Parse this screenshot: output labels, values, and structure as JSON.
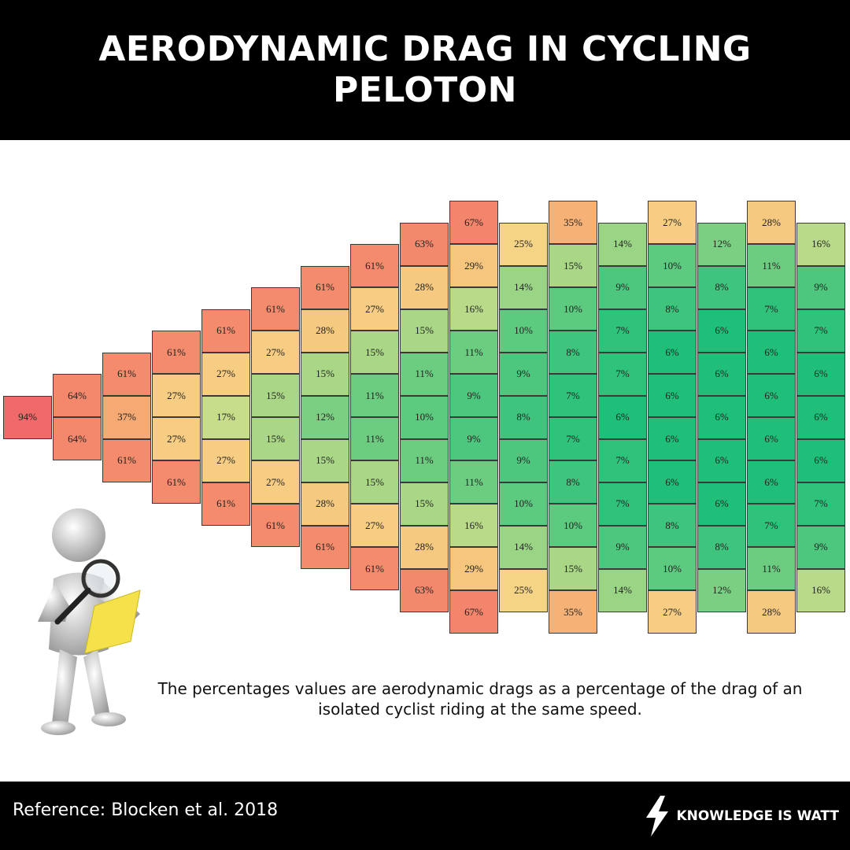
{
  "title": "AERODYNAMIC DRAG IN CYCLING PELOTON",
  "note": "The percentages values are aerodynamic drags  as a percentage of the drag of an isolated cyclist riding at the same speed.",
  "footer": {
    "reference": "Reference: Blocken et al. 2018",
    "brand": "KNOWLEDGE IS WATT"
  },
  "chart_data": {
    "type": "heatmap",
    "title": "AERODYNAMIC DRAG IN CYCLING PELOTON",
    "unit": "%",
    "description": "Columns of riders from front (left) to back (right); values listed top to bottom",
    "columns": [
      [
        "94%"
      ],
      [
        "64%",
        "64%"
      ],
      [
        "61%",
        "37%",
        "61%"
      ],
      [
        "61%",
        "27%",
        "27%",
        "61%"
      ],
      [
        "61%",
        "27%",
        "17%",
        "27%",
        "61%"
      ],
      [
        "61%",
        "27%",
        "15%",
        "15%",
        "27%",
        "61%"
      ],
      [
        "61%",
        "28%",
        "15%",
        "12%",
        "15%",
        "28%",
        "61%"
      ],
      [
        "61%",
        "27%",
        "15%",
        "11%",
        "11%",
        "15%",
        "27%",
        "61%"
      ],
      [
        "63%",
        "28%",
        "15%",
        "11%",
        "10%",
        "11%",
        "15%",
        "28%",
        "63%"
      ],
      [
        "67%",
        "29%",
        "16%",
        "11%",
        "9%",
        "9%",
        "11%",
        "16%",
        "29%",
        "67%"
      ],
      [
        "25%",
        "14%",
        "10%",
        "9%",
        "8%",
        "9%",
        "10%",
        "14%",
        "25%"
      ],
      [
        "35%",
        "15%",
        "10%",
        "8%",
        "7%",
        "7%",
        "8%",
        "10%",
        "15%",
        "35%"
      ],
      [
        "14%",
        "9%",
        "7%",
        "7%",
        "6%",
        "7%",
        "7%",
        "9%",
        "14%"
      ],
      [
        "27%",
        "10%",
        "8%",
        "6%",
        "6%",
        "6%",
        "6%",
        "8%",
        "10%",
        "27%"
      ],
      [
        "12%",
        "8%",
        "6%",
        "6%",
        "6%",
        "6%",
        "6%",
        "8%",
        "12%"
      ],
      [
        "28%",
        "11%",
        "7%",
        "6%",
        "6%",
        "6%",
        "6%",
        "7%",
        "11%",
        "28%"
      ],
      [
        "16%",
        "9%",
        "7%",
        "6%",
        "6%",
        "6%",
        "7%",
        "9%",
        "16%"
      ]
    ],
    "color_scale": {
      "low": "#1fbf7a",
      "mid": "#f6e58d",
      "high": "#f06a6a"
    }
  }
}
